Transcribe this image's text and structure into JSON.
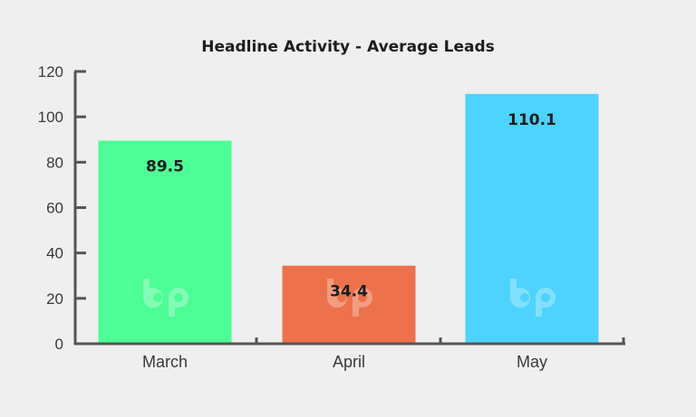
{
  "chart_data": {
    "type": "bar",
    "title": "Headline Activity - Average Leads",
    "xlabel": "",
    "ylabel": "",
    "categories": [
      "March",
      "April",
      "May"
    ],
    "values": [
      89.5,
      34.4,
      110.1
    ],
    "value_labels": [
      "89.5",
      "34.4",
      "110.1"
    ],
    "colors": [
      "#4dfd95",
      "#ed714a",
      "#4dd3fd"
    ],
    "ylim": [
      0,
      120
    ],
    "yticks": [
      0,
      20,
      40,
      60,
      80,
      100,
      120
    ],
    "grid": false,
    "legend": "none"
  },
  "watermark": {
    "icon": "bp-logo-icon"
  },
  "colors": {
    "background": "#efefef",
    "axis": "#555555"
  }
}
